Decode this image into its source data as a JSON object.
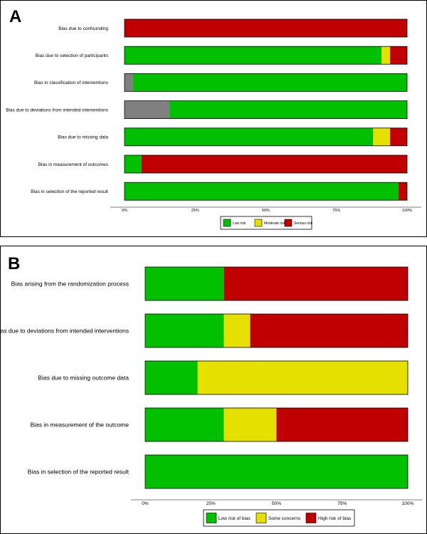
{
  "colors": {
    "low": "#00c000",
    "moderate": "#e6e000",
    "serious": "#c00000",
    "no_info": "#808080"
  },
  "chart_data": [
    {
      "panel_label": "A",
      "type": "bar",
      "orientation": "horizontal",
      "stacked": true,
      "categories": [
        "Bias due to confounding",
        "Bias due to selection of participants",
        "Bias in classification of interventions",
        "Bias due to deviations from intended interventions",
        "Bias due to missing data",
        "Bias in measurement of outcomes",
        "Bias in selection of the reported result"
      ],
      "series": [
        {
          "key": "no_info",
          "name": "",
          "color": "#808080",
          "values": [
            0,
            0,
            3,
            16,
            0,
            0,
            0
          ]
        },
        {
          "key": "low",
          "name": "Low risk",
          "color": "#00c000",
          "values": [
            0,
            91,
            97,
            84,
            88,
            6,
            97
          ]
        },
        {
          "key": "moderate",
          "name": "Moderate risk",
          "color": "#e6e000",
          "values": [
            0,
            3,
            0,
            0,
            6,
            0,
            0
          ]
        },
        {
          "key": "serious",
          "name": "Serious risk",
          "color": "#c00000",
          "values": [
            100,
            6,
            0,
            0,
            6,
            94,
            3
          ]
        }
      ],
      "xlim": [
        0,
        100
      ],
      "xticks": [
        "0%",
        "25%",
        "50%",
        "75%",
        "100%"
      ],
      "legend_position": "bottom",
      "legend_keys": [
        "low",
        "moderate",
        "serious"
      ]
    },
    {
      "panel_label": "B",
      "type": "bar",
      "orientation": "horizontal",
      "stacked": true,
      "categories": [
        "Bias arising from the randomization process",
        "Bias due to deviations from intended interventions",
        "Bias due to missing outcome data",
        "Bias in measurement of the outcome",
        "Bias in selection of the reported result"
      ],
      "series": [
        {
          "key": "low",
          "name": "Low risk of bias",
          "color": "#00c000",
          "values": [
            30,
            30,
            20,
            30,
            100
          ]
        },
        {
          "key": "some",
          "name": "Some concerns",
          "color": "#e6e000",
          "values": [
            0,
            10,
            80,
            20,
            0
          ]
        },
        {
          "key": "high",
          "name": "High risk of bias",
          "color": "#c00000",
          "values": [
            70,
            60,
            0,
            50,
            0
          ]
        }
      ],
      "xlim": [
        0,
        100
      ],
      "xticks": [
        "0%",
        "25%",
        "50%",
        "75%",
        "100%"
      ],
      "legend_position": "bottom",
      "legend_keys": [
        "low",
        "some",
        "high"
      ]
    }
  ]
}
